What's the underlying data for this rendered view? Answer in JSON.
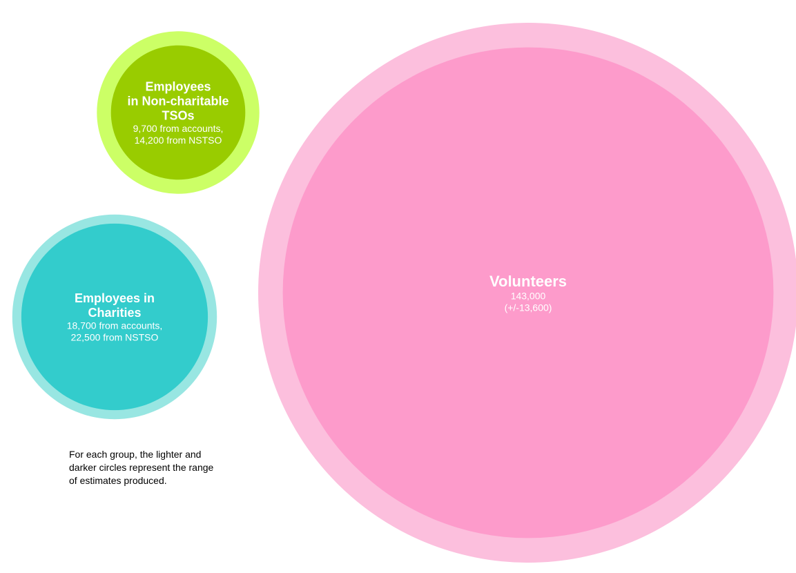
{
  "chart_data": {
    "type": "bubble",
    "series": [
      {
        "name": "Volunteers",
        "title_lines": [
          "Volunteers"
        ],
        "detail_lines": [
          "143,000",
          "(+/-13,600)"
        ],
        "values": [
          129400,
          156600
        ],
        "colors": {
          "outer": "#fcbfdd",
          "inner": "#fd9bcb"
        }
      },
      {
        "name": "Employees in Charities",
        "title_lines": [
          "Employees in",
          "Charities"
        ],
        "detail_lines": [
          "18,700 from accounts,",
          "22,500 from NSTSO"
        ],
        "values": [
          18700,
          22500
        ],
        "colors": {
          "outer": "#98e6e2",
          "inner": "#33cccc"
        }
      },
      {
        "name": "Employees in Non-charitable TSOs",
        "title_lines": [
          "Employees",
          "in Non-charitable",
          "TSOs"
        ],
        "detail_lines": [
          "9,700 from accounts,",
          "14,200 from NSTSO"
        ],
        "values": [
          9700,
          14200
        ],
        "colors": {
          "outer": "#ccff66",
          "inner": "#99cc00"
        }
      }
    ],
    "note": "For each group, the lighter and darker circles represent the range of estimates produced.",
    "label_color": "#ffffff"
  }
}
